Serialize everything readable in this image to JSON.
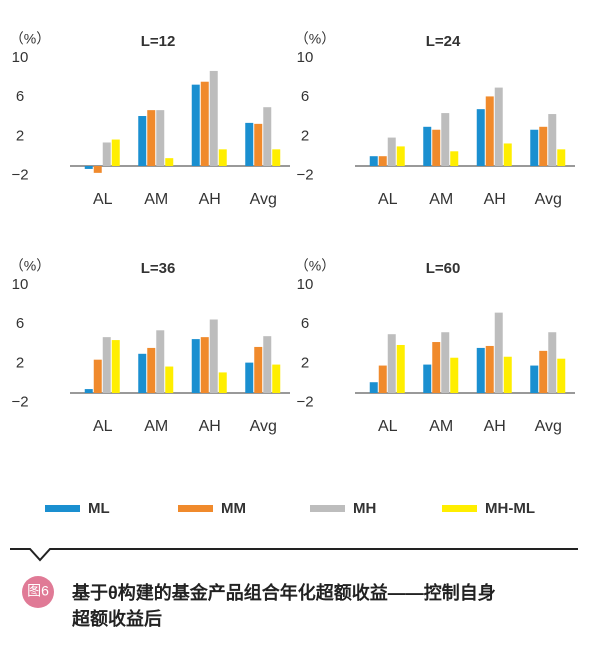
{
  "chart_data": [
    {
      "type": "bar",
      "title": "L=12",
      "y_label": "（%）",
      "categories": [
        "AL",
        "AM",
        "AH",
        "Avg"
      ],
      "ylim": [
        -2,
        10
      ],
      "yticks": [
        10,
        6,
        2,
        {
          "value": -2,
          "label": "−2"
        }
      ],
      "series": [
        {
          "values": [
            -0.3,
            5.1,
            8.3,
            4.4
          ]
        },
        {
          "values": [
            -0.7,
            5.7,
            8.6,
            4.3
          ]
        },
        {
          "values": [
            2.4,
            5.7,
            9.7,
            6.0
          ]
        },
        {
          "values": [
            2.7,
            0.8,
            1.7,
            1.7
          ]
        }
      ]
    },
    {
      "type": "bar",
      "title": "L=24",
      "y_label": "（%）",
      "categories": [
        "AL",
        "AM",
        "AH",
        "Avg"
      ],
      "ylim": [
        -2,
        10
      ],
      "yticks": [
        10,
        6,
        2,
        {
          "value": -2,
          "label": "−2"
        }
      ],
      "series": [
        {
          "values": [
            1.0,
            4.0,
            5.8,
            3.7
          ]
        },
        {
          "values": [
            1.0,
            3.7,
            7.1,
            4.0
          ]
        },
        {
          "values": [
            2.9,
            5.4,
            8.0,
            5.3
          ]
        },
        {
          "values": [
            2.0,
            1.5,
            2.3,
            1.7
          ]
        }
      ]
    },
    {
      "type": "bar",
      "title": "L=36",
      "y_label": "（%）",
      "categories": [
        "AL",
        "AM",
        "AH",
        "Avg"
      ],
      "ylim": [
        -2,
        10
      ],
      "yticks": [
        10,
        6,
        2,
        {
          "value": -2,
          "label": "−2"
        }
      ],
      "series": [
        {
          "values": [
            0.4,
            4.0,
            5.5,
            3.1
          ]
        },
        {
          "values": [
            3.4,
            4.6,
            5.7,
            4.7
          ]
        },
        {
          "values": [
            5.7,
            6.4,
            7.5,
            5.8
          ]
        },
        {
          "values": [
            5.4,
            2.7,
            2.1,
            2.9
          ]
        }
      ]
    },
    {
      "type": "bar",
      "title": "L=60",
      "y_label": "（%）",
      "categories": [
        "AL",
        "AM",
        "AH",
        "Avg"
      ],
      "ylim": [
        -2,
        10
      ],
      "yticks": [
        10,
        6,
        2,
        {
          "value": -2,
          "label": "−2"
        }
      ],
      "series": [
        {
          "values": [
            1.1,
            2.9,
            4.6,
            2.8
          ]
        },
        {
          "values": [
            2.8,
            5.2,
            4.8,
            4.3
          ]
        },
        {
          "values": [
            6.0,
            6.2,
            8.2,
            6.2
          ]
        },
        {
          "values": [
            4.9,
            3.6,
            3.7,
            3.5
          ]
        }
      ]
    }
  ],
  "legend": [
    {
      "name": "ML",
      "color": "#1a8fd0"
    },
    {
      "name": "MM",
      "color": "#f08a2c"
    },
    {
      "name": "MH",
      "color": "#bdbdbd"
    },
    {
      "name": "MH-ML",
      "color": "#ffee00"
    }
  ],
  "caption": {
    "badge": "图6",
    "lines": [
      "基于θ构建的基金产品组合年化超额收益——控制自身",
      "超额收益后"
    ]
  }
}
